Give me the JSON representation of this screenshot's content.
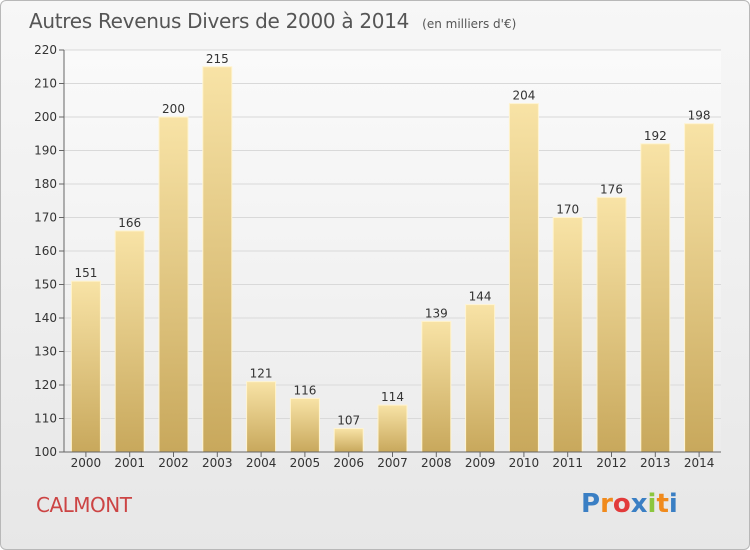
{
  "chart_title": "Autres Revenus Divers de 2000 à 2014",
  "chart_subtitle": "(en milliers d'€)",
  "commune": "CALMONT",
  "logo": {
    "letters": [
      "P",
      "r",
      "o",
      "x",
      "i",
      "t",
      "i"
    ],
    "colors": [
      "#3a7fc4",
      "#f08a1c",
      "#e23b3b",
      "#3a7fc4",
      "#8cc63f",
      "#f08a1c",
      "#3a7fc4"
    ]
  },
  "colors": {
    "bar_light": "#f8e3a6",
    "bar_dark": "#c8a85c",
    "gridline": "#d9d9d9"
  },
  "chart_data": {
    "type": "bar",
    "title": "Autres Revenus Divers de 2000 à 2014",
    "subtitle": "(en milliers d'€)",
    "categories": [
      "2000",
      "2001",
      "2002",
      "2003",
      "2004",
      "2005",
      "2006",
      "2007",
      "2008",
      "2009",
      "2010",
      "2011",
      "2012",
      "2013",
      "2014"
    ],
    "values": [
      151,
      166,
      200,
      215,
      121,
      116,
      107,
      114,
      139,
      144,
      204,
      170,
      176,
      192,
      198
    ],
    "ylim": [
      100,
      220
    ],
    "yticks": [
      100,
      110,
      120,
      130,
      140,
      150,
      160,
      170,
      180,
      190,
      200,
      210,
      220
    ],
    "grid": true,
    "xlabel": "",
    "ylabel": ""
  }
}
